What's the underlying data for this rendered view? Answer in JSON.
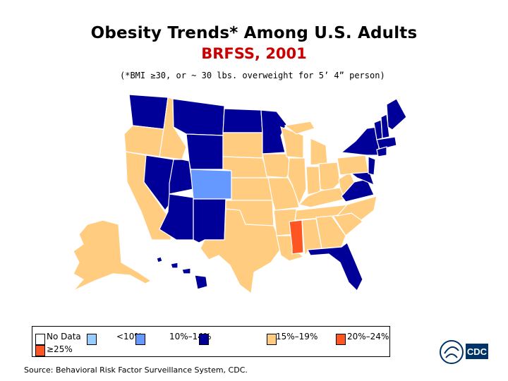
{
  "title": "Obesity Trends* Among U.S. Adults",
  "subtitle": "BRFSS, 2001",
  "note": "(*BMI ≥30, or ~ 30 lbs. overweight for 5’ 4” person)",
  "colors": {
    "no_data": "#ffffff",
    "lt10": "#99ccff",
    "c10_14": "#6699ff",
    "c15_19": "#000099",
    "c20_24": "#ffcc80",
    "c25": "#ff5522",
    "title_red": "#cc0000"
  },
  "legend": {
    "no_data": "No Data",
    "ge25": "≥25%",
    "lt10": "<10%",
    "r10": "10%–14%",
    "r15": "15%–19%",
    "r20": "20%–24%"
  },
  "source": "Source: Behavioral Risk Factor Surveillance System, CDC.",
  "logo": {
    "text": "CDC",
    "icon": "hhs-eagle-icon"
  }
}
